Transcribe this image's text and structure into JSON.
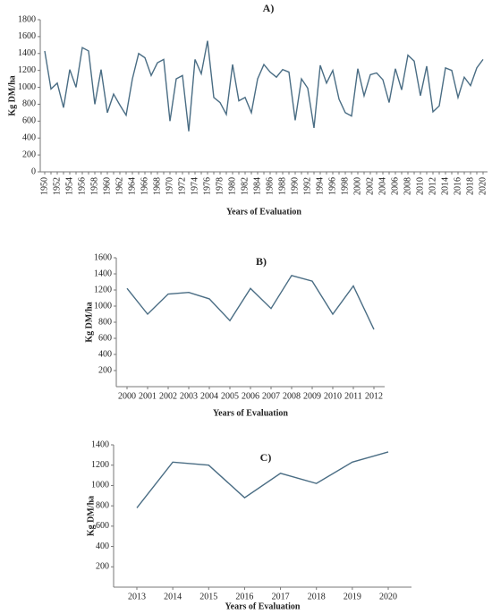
{
  "chart_data": [
    {
      "type": "line",
      "title": "A)",
      "y_label": "Kg DM/ha",
      "x_label": "Years of Evaluation",
      "color": "#4a6d84",
      "categories": [
        "1950",
        null,
        "1952",
        null,
        "1954",
        null,
        "1956",
        null,
        "1958",
        null,
        "1960",
        null,
        "1962",
        null,
        "1964",
        null,
        "1966",
        null,
        "1968",
        null,
        "1970",
        null,
        "1972",
        null,
        "1974",
        null,
        "1976",
        null,
        "1978",
        null,
        "1980",
        null,
        "1982",
        null,
        "1984",
        null,
        "1986",
        null,
        "1988",
        null,
        "1990",
        null,
        "1992",
        null,
        "1994",
        null,
        "1996",
        null,
        "1998",
        null,
        "2000",
        null,
        "2002",
        null,
        "2004",
        null,
        "2006",
        null,
        "2008",
        null,
        "2010",
        null,
        "2012",
        null,
        "2014",
        null,
        "2016",
        null,
        "2018",
        null,
        "2020"
      ],
      "values": [
        1430,
        980,
        1050,
        760,
        1210,
        1000,
        1470,
        1430,
        800,
        1210,
        700,
        920,
        790,
        670,
        1100,
        1400,
        1350,
        1140,
        1290,
        1330,
        600,
        1100,
        1140,
        480,
        1330,
        1160,
        1550,
        880,
        820,
        680,
        1270,
        840,
        880,
        700,
        1100,
        1270,
        1180,
        1120,
        1210,
        1180,
        610,
        1100,
        990,
        520,
        1260,
        1050,
        1200,
        860,
        700,
        660,
        1220,
        900,
        1150,
        1170,
        1090,
        820,
        1220,
        970,
        1380,
        1310,
        900,
        1250,
        710,
        780,
        1230,
        1200,
        880,
        1120,
        1020,
        1230,
        1330
      ],
      "ylim": [
        0,
        1800
      ],
      "yticks": [
        0,
        200,
        400,
        600,
        800,
        1000,
        1200,
        1400,
        1600,
        1800
      ],
      "grid": false
    },
    {
      "type": "line",
      "title": "B)",
      "y_label": "Kg DM/ha",
      "x_label": "Years of Evaluation",
      "color": "#4a6d84",
      "categories": [
        "2000",
        "2001",
        "2002",
        "2003",
        "2004",
        "2005",
        "2006",
        "2007",
        "2008",
        "2009",
        "2010",
        "2011",
        "2012"
      ],
      "values": [
        1220,
        900,
        1150,
        1170,
        1090,
        820,
        1220,
        970,
        1380,
        1310,
        900,
        1250,
        710
      ],
      "ylim": [
        0,
        1600
      ],
      "yticks": [
        200,
        400,
        600,
        800,
        1000,
        1200,
        1400,
        1600
      ],
      "grid": false
    },
    {
      "type": "line",
      "title": "C)",
      "y_label": "Kg DM/ha",
      "x_label": "Years of Evaluation",
      "color": "#4a6d84",
      "categories": [
        "2013",
        "2014",
        "2015",
        "2016",
        "2017",
        "2018",
        "2019",
        "2020"
      ],
      "values": [
        780,
        1230,
        1200,
        880,
        1120,
        1020,
        1230,
        1330
      ],
      "ylim": [
        0,
        1400
      ],
      "yticks": [
        200,
        400,
        600,
        800,
        1000,
        1200,
        1400
      ],
      "grid": false
    }
  ]
}
